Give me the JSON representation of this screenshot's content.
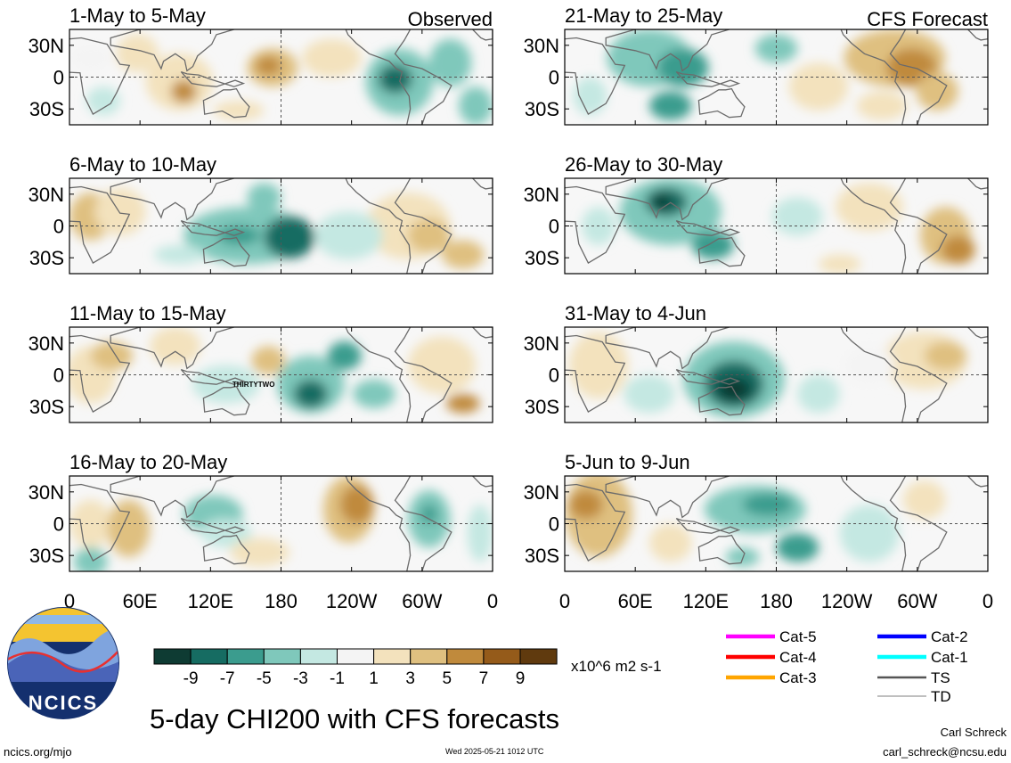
{
  "header": {
    "left_label": "Observed",
    "right_label": "CFS Forecast"
  },
  "panels": {
    "left": [
      {
        "title": "1-May to 5-May"
      },
      {
        "title": "6-May to 10-May"
      },
      {
        "title": "11-May to 15-May",
        "annotation": "THIRTYTWO"
      },
      {
        "title": "16-May to 20-May"
      }
    ],
    "right": [
      {
        "title": "21-May to 25-May"
      },
      {
        "title": "26-May to 30-May"
      },
      {
        "title": "31-May to 4-Jun"
      },
      {
        "title": "5-Jun to 9-Jun"
      }
    ]
  },
  "axes": {
    "lat_labels": [
      "30N",
      "0",
      "30S"
    ],
    "lon_labels": [
      "0",
      "60E",
      "120E",
      "180",
      "120W",
      "60W",
      "0"
    ]
  },
  "colorbar": {
    "unit": "x10^6 m2 s-1",
    "tick_labels": [
      "-9",
      "-7",
      "-5",
      "-3",
      "-1",
      "1",
      "3",
      "5",
      "7",
      "9"
    ],
    "colors": [
      "#0e3b33",
      "#166c62",
      "#3b9c8e",
      "#7fc8bb",
      "#c4e8e2",
      "#f4f4f4",
      "#f3e2bd",
      "#dfc080",
      "#c08a3c",
      "#955b1a",
      "#603a0e"
    ]
  },
  "legend": {
    "items": [
      {
        "label": "Cat-5",
        "color": "#ff00ff"
      },
      {
        "label": "Cat-2",
        "color": "#0000ff"
      },
      {
        "label": "Cat-4",
        "color": "#ff0000"
      },
      {
        "label": "Cat-1",
        "color": "#00ffff"
      },
      {
        "label": "Cat-3",
        "color": "#ffa500"
      },
      {
        "label": "TS",
        "color": "#555555"
      },
      {
        "label": "TD",
        "color": "#aaaaaa"
      }
    ]
  },
  "logo": {
    "text": "NCICS"
  },
  "footer": {
    "title": "5-day CHI200 with CFS forecasts",
    "url": "ncics.org/mjo",
    "timestamp": "Wed 2025-05-21 1012 UTC",
    "author": "Carl Schreck",
    "email": "carl_schreck@ncsu.edu"
  }
}
